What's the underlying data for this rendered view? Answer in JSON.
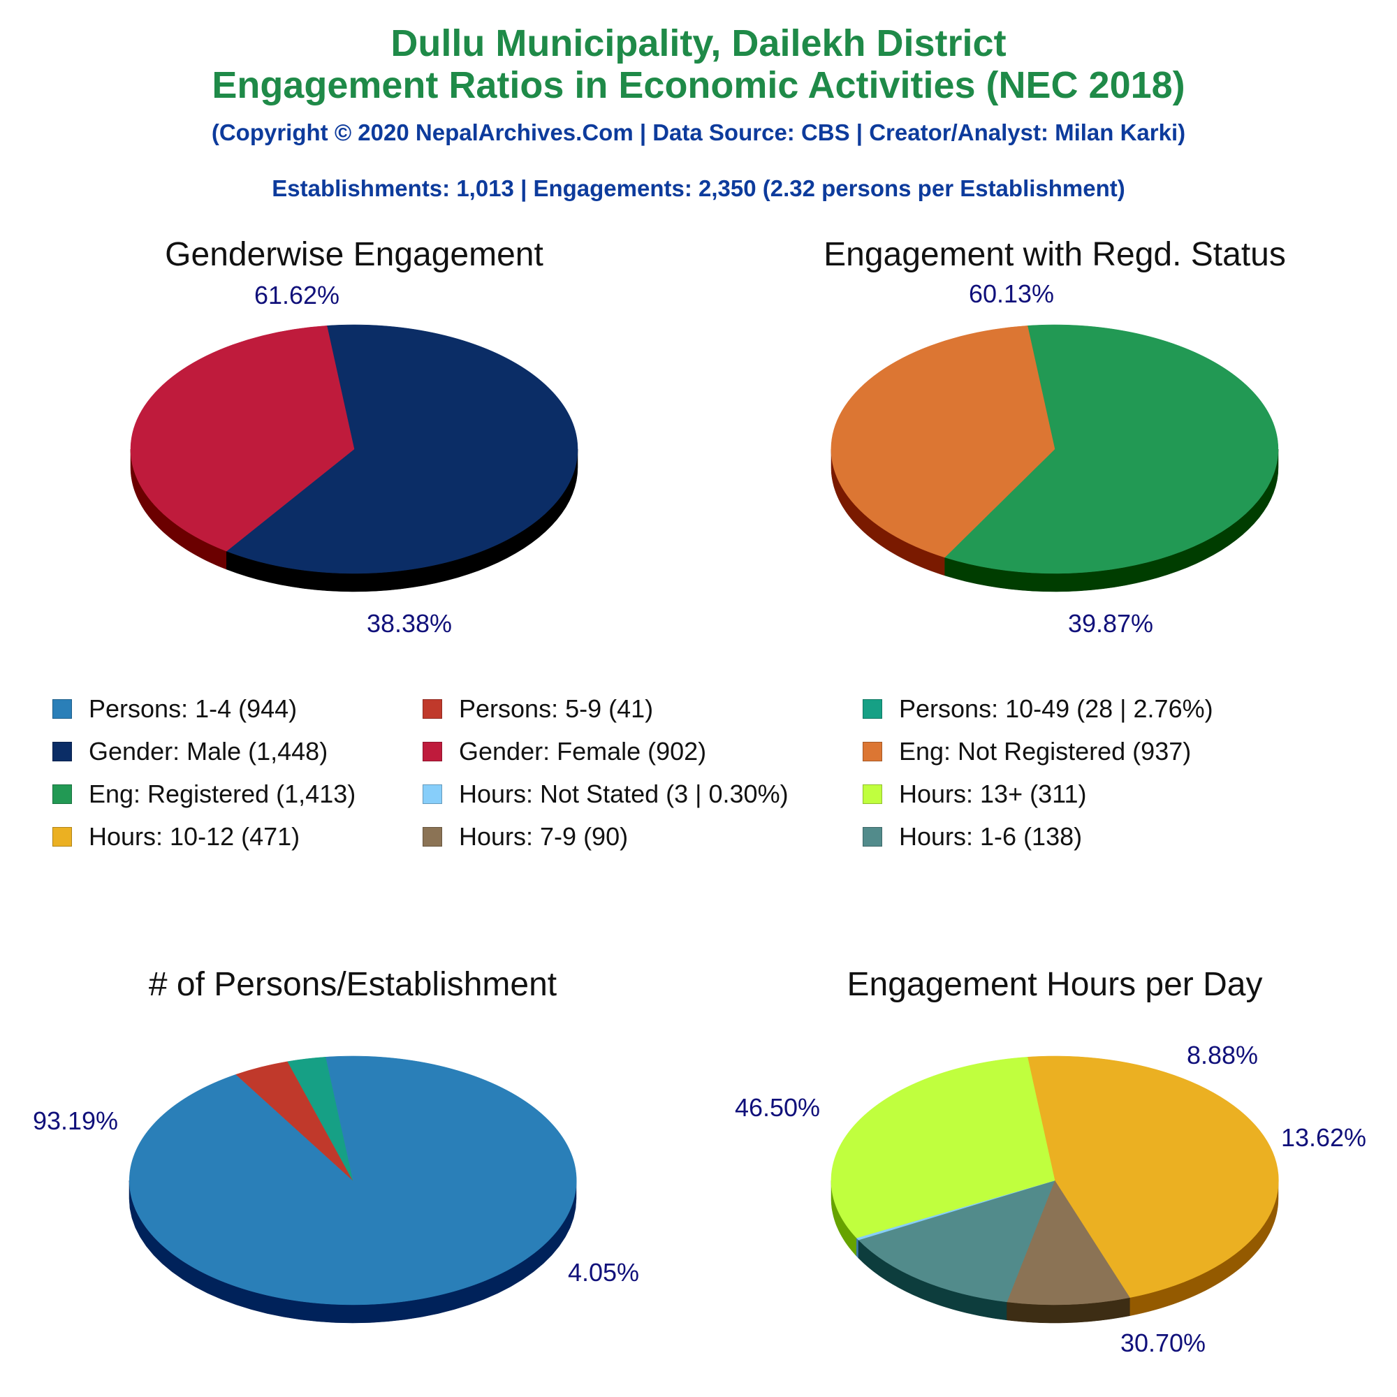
{
  "header": {
    "title_line1": "Dullu Municipality, Dailekh District",
    "title_line2": "Engagement Ratios in Economic Activities (NEC 2018)",
    "copyright": "(Copyright © 2020 NepalArchives.Com | Data Source: CBS | Creator/Analyst: Milan Karki)",
    "summary": "Establishments: 1,013 | Engagements: 2,350 (2.32 persons per Establishment)"
  },
  "colors": {
    "title": "#1f8a48",
    "subtitle": "#0d3b9c",
    "pct_label": "#10107a"
  },
  "legend": [
    {
      "label": "Persons: 1-4 (944)",
      "color": "#2a7fb8"
    },
    {
      "label": "Persons: 5-9 (41)",
      "color": "#c0392b"
    },
    {
      "label": "Persons: 10-49 (28 | 2.76%)",
      "color": "#16a085"
    },
    {
      "label": "Gender: Male (1,448)",
      "color": "#0b2d66"
    },
    {
      "label": "Gender: Female (902)",
      "color": "#bf1b3c"
    },
    {
      "label": "Eng: Not Registered (937)",
      "color": "#dc7633"
    },
    {
      "label": "Eng: Registered (1,413)",
      "color": "#229954"
    },
    {
      "label": "Hours: Not Stated (3 | 0.30%)",
      "color": "#87cefa"
    },
    {
      "label": "Hours: 13+ (311)",
      "color": "#c0ff3e"
    },
    {
      "label": "Hours: 10-12 (471)",
      "color": "#ebb022"
    },
    {
      "label": "Hours: 7-9 (90)",
      "color": "#8b7355"
    },
    {
      "label": "Hours: 1-6 (138)",
      "color": "#528b8b"
    }
  ],
  "chart_data": [
    {
      "type": "pie",
      "title": "Genderwise Engagement",
      "slices": [
        {
          "name": "Gender: Male",
          "value": 1448,
          "pct": "61.62%",
          "color": "#0b2d66",
          "side": "#000000"
        },
        {
          "name": "Gender: Female",
          "value": 902,
          "pct": "38.38%",
          "color": "#bf1b3c",
          "side": "#6b0000"
        }
      ]
    },
    {
      "type": "pie",
      "title": "Engagement with Regd. Status",
      "slices": [
        {
          "name": "Eng: Registered",
          "value": 1413,
          "pct": "60.13%",
          "color": "#229954",
          "side": "#003d00"
        },
        {
          "name": "Eng: Not Registered",
          "value": 937,
          "pct": "39.87%",
          "color": "#dc7633",
          "side": "#7a1a00"
        }
      ]
    },
    {
      "type": "pie",
      "title": "# of Persons/Establishment",
      "slices": [
        {
          "name": "Persons: 1-4",
          "value": 944,
          "pct": "93.19%",
          "color": "#2a7fb8",
          "side": "#00225a"
        },
        {
          "name": "Persons: 5-9",
          "value": 41,
          "pct": "4.05%",
          "color": "#c0392b",
          "side": "#660000"
        },
        {
          "name": "Persons: 10-49",
          "value": 28,
          "pct": "",
          "color": "#16a085",
          "side": "#004d33"
        }
      ]
    },
    {
      "type": "pie",
      "title": "Engagement Hours per Day",
      "slices": [
        {
          "name": "Hours: 10-12",
          "value": 471,
          "pct": "46.50%",
          "color": "#ebb022",
          "side": "#945a00"
        },
        {
          "name": "Hours: 7-9",
          "value": 90,
          "pct": "8.88%",
          "color": "#8b7355",
          "side": "#3d2d14"
        },
        {
          "name": "Hours: 1-6",
          "value": 138,
          "pct": "13.62%",
          "color": "#528b8b",
          "side": "#0d3d3d"
        },
        {
          "name": "Hours: Not Stated",
          "value": 3,
          "pct": "",
          "color": "#87cefa",
          "side": "#3a78a8"
        },
        {
          "name": "Hours: 13+",
          "value": 311,
          "pct": "30.70%",
          "color": "#c0ff3e",
          "side": "#66a300"
        }
      ]
    }
  ]
}
